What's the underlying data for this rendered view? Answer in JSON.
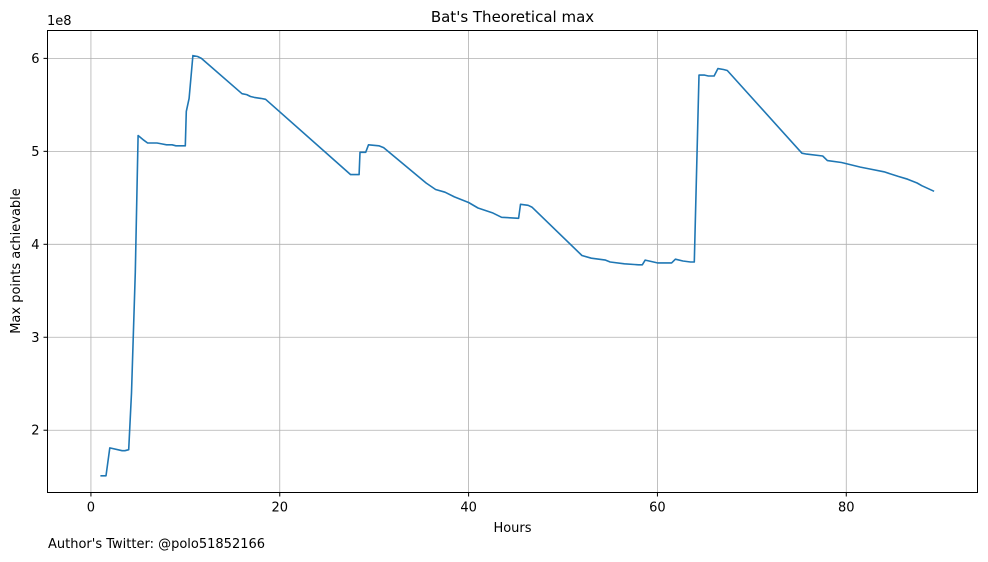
{
  "chart_data": {
    "type": "line",
    "title": "Bat's Theoretical max",
    "xlabel": "Hours",
    "ylabel": "Max points achievable",
    "y_offset_label": "1e8",
    "xlim": [
      -4.6,
      93.9
    ],
    "ylim": [
      1.33,
      6.3
    ],
    "x_ticks": [
      0,
      20,
      40,
      60,
      80
    ],
    "x_tick_labels": [
      "0",
      "20",
      "40",
      "60",
      "80"
    ],
    "y_ticks": [
      2,
      3,
      4,
      5,
      6
    ],
    "y_tick_labels": [
      "2",
      "3",
      "4",
      "5",
      "6"
    ],
    "grid": true,
    "line_color": "#1f77b4",
    "series": [
      {
        "x": [
          1.0,
          1.6,
          2.0,
          3.3,
          3.6,
          4.0,
          4.3,
          4.7,
          5.0,
          5.6,
          6.0,
          6.5,
          7.0,
          7.5,
          8.0,
          8.6,
          9.0,
          9.6,
          10.0,
          10.1,
          10.4,
          10.8,
          11.3,
          11.7,
          16.0,
          16.5,
          16.9,
          17.3,
          18.0,
          18.5,
          27.5,
          27.8,
          28.4,
          28.5,
          29.1,
          29.4,
          30.5,
          31.0,
          35.5,
          36.5,
          37.5,
          38.5,
          40.0,
          41.0,
          42.5,
          43.5,
          45.3,
          45.5,
          46.3,
          46.7,
          52.0,
          53.0,
          54.5,
          55.0,
          56.5,
          58.0,
          58.4,
          58.7,
          60.0,
          61.5,
          61.9,
          62.7,
          63.5,
          63.9,
          64.4,
          65.0,
          65.4,
          66.0,
          66.4,
          67.0,
          67.4,
          75.3,
          75.8,
          77.5,
          78.0,
          79.5,
          81.5,
          82.5,
          84.0,
          85.5,
          86.5,
          87.5,
          88.0,
          89.3
        ],
        "y": [
          1.51,
          1.51,
          1.81,
          1.78,
          1.78,
          1.79,
          2.4,
          3.7,
          5.17,
          5.12,
          5.09,
          5.09,
          5.09,
          5.08,
          5.07,
          5.07,
          5.06,
          5.06,
          5.06,
          5.43,
          5.57,
          6.03,
          6.02,
          6.0,
          5.62,
          5.61,
          5.59,
          5.58,
          5.57,
          5.56,
          4.75,
          4.75,
          4.75,
          4.99,
          4.99,
          5.07,
          5.06,
          5.04,
          4.66,
          4.59,
          4.56,
          4.51,
          4.45,
          4.39,
          4.34,
          4.29,
          4.28,
          4.43,
          4.42,
          4.4,
          3.88,
          3.85,
          3.83,
          3.81,
          3.79,
          3.78,
          3.78,
          3.83,
          3.8,
          3.8,
          3.84,
          3.82,
          3.81,
          3.81,
          5.82,
          5.82,
          5.81,
          5.81,
          5.89,
          5.88,
          5.87,
          4.98,
          4.97,
          4.95,
          4.9,
          4.88,
          4.83,
          4.81,
          4.78,
          4.73,
          4.7,
          4.66,
          4.63,
          4.57
        ]
      }
    ]
  },
  "footnote": "Author's Twitter: @polo51852166"
}
